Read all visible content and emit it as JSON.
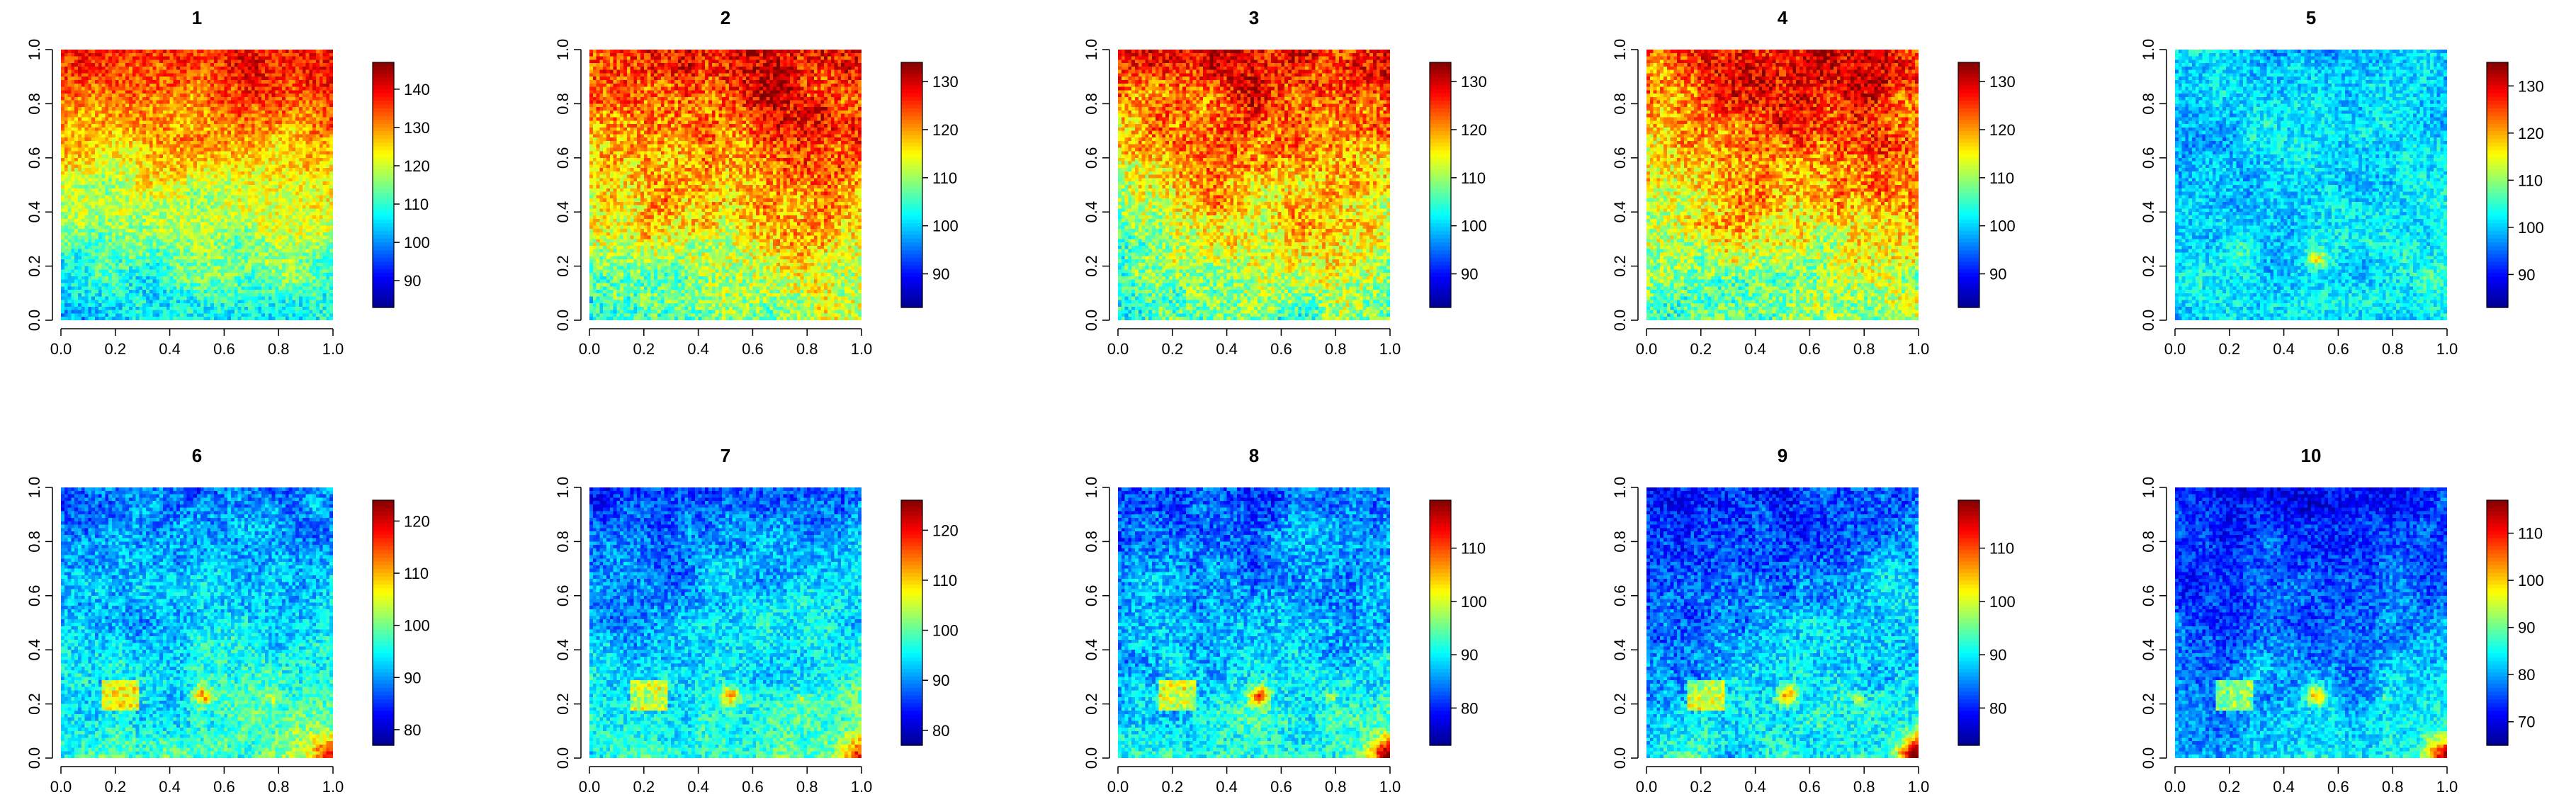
{
  "chart_data": {
    "type": "heatmap",
    "layout": {
      "rows": 2,
      "cols": 5
    },
    "colormap": [
      "#00008F",
      "#0000FF",
      "#0080FF",
      "#00FFFF",
      "#80FF80",
      "#FFFF00",
      "#FF8000",
      "#FF0000",
      "#800000"
    ],
    "panels": [
      {
        "title": "1",
        "xlim": [
          0,
          1
        ],
        "ylim": [
          0,
          1
        ],
        "xticks": [
          "0.0",
          "0.2",
          "0.4",
          "0.6",
          "0.8",
          "1.0"
        ],
        "yticks": [
          "0.0",
          "0.2",
          "0.4",
          "0.6",
          "0.8",
          "1.0"
        ],
        "zlim": [
          83,
          147
        ],
        "legend_ticks": [
          90,
          100,
          110,
          120,
          130,
          140
        ],
        "field": {
          "base": 104,
          "gradient_y": 32,
          "gradient_x": 4,
          "ridge_x": 0,
          "noise": 7,
          "hotspots": [],
          "corner": 0
        }
      },
      {
        "title": "2",
        "xlim": [
          0,
          1
        ],
        "ylim": [
          0,
          1
        ],
        "xticks": [
          "0.0",
          "0.2",
          "0.4",
          "0.6",
          "0.8",
          "1.0"
        ],
        "yticks": [
          "0.0",
          "0.2",
          "0.4",
          "0.6",
          "0.8",
          "1.0"
        ],
        "zlim": [
          83,
          134
        ],
        "legend_ticks": [
          90,
          100,
          110,
          120,
          130
        ],
        "field": {
          "base": 106,
          "gradient_y": 18,
          "gradient_x": 4,
          "ridge_x": 5,
          "noise": 7,
          "hotspots": [],
          "corner": 0
        }
      },
      {
        "title": "3",
        "xlim": [
          0,
          1
        ],
        "ylim": [
          0,
          1
        ],
        "xticks": [
          "0.0",
          "0.2",
          "0.4",
          "0.6",
          "0.8",
          "1.0"
        ],
        "yticks": [
          "0.0",
          "0.2",
          "0.4",
          "0.6",
          "0.8",
          "1.0"
        ],
        "zlim": [
          83,
          134
        ],
        "legend_ticks": [
          90,
          100,
          110,
          120,
          130
        ],
        "field": {
          "base": 105,
          "gradient_y": 18,
          "gradient_x": 4,
          "ridge_x": 5,
          "noise": 7,
          "hotspots": [],
          "corner": 0
        }
      },
      {
        "title": "4",
        "xlim": [
          0,
          1
        ],
        "ylim": [
          0,
          1
        ],
        "xticks": [
          "0.0",
          "0.2",
          "0.4",
          "0.6",
          "0.8",
          "1.0"
        ],
        "yticks": [
          "0.0",
          "0.2",
          "0.4",
          "0.6",
          "0.8",
          "1.0"
        ],
        "zlim": [
          83,
          134
        ],
        "legend_ticks": [
          90,
          100,
          110,
          120,
          130
        ],
        "field": {
          "base": 105,
          "gradient_y": 18,
          "gradient_x": 4,
          "ridge_x": 5,
          "noise": 7,
          "hotspots": [],
          "corner": 0
        }
      },
      {
        "title": "5",
        "xlim": [
          0,
          1
        ],
        "ylim": [
          0,
          1
        ],
        "xticks": [
          "0.0",
          "0.2",
          "0.4",
          "0.6",
          "0.8",
          "1.0"
        ],
        "yticks": [
          "0.0",
          "0.2",
          "0.4",
          "0.6",
          "0.8",
          "1.0"
        ],
        "zlim": [
          83,
          135
        ],
        "legend_ticks": [
          90,
          100,
          110,
          120,
          130
        ],
        "field": {
          "base": 101,
          "gradient_y": -2,
          "gradient_x": 2,
          "ridge_x": 0,
          "noise": 5,
          "hotspots": [
            {
              "x": 0.52,
              "y": 0.23,
              "r": 0.03,
              "amp": 14
            },
            {
              "x": 0.25,
              "y": 0.25,
              "r": 0.07,
              "amp": 6
            }
          ],
          "corner": 0
        }
      },
      {
        "title": "6",
        "xlim": [
          0,
          1
        ],
        "ylim": [
          0,
          1
        ],
        "xticks": [
          "0.0",
          "0.2",
          "0.4",
          "0.6",
          "0.8",
          "1.0"
        ],
        "yticks": [
          "0.0",
          "0.2",
          "0.4",
          "0.6",
          "0.8",
          "1.0"
        ],
        "zlim": [
          77,
          124
        ],
        "legend_ticks": [
          80,
          90,
          100,
          110,
          120
        ],
        "field": {
          "base": 96,
          "gradient_y": -9,
          "gradient_x": 3,
          "ridge_x": 0,
          "noise": 5,
          "hotspots": [
            {
              "x": 0.22,
              "y": 0.23,
              "r": 0.07,
              "amp": 13,
              "square": true
            },
            {
              "x": 0.52,
              "y": 0.23,
              "r": 0.035,
              "amp": 16
            },
            {
              "x": 0.78,
              "y": 0.22,
              "r": 0.02,
              "amp": 8
            }
          ],
          "corner": 22
        }
      },
      {
        "title": "7",
        "xlim": [
          0,
          1
        ],
        "ylim": [
          0,
          1
        ],
        "xticks": [
          "0.0",
          "0.2",
          "0.4",
          "0.6",
          "0.8",
          "1.0"
        ],
        "yticks": [
          "0.0",
          "0.2",
          "0.4",
          "0.6",
          "0.8",
          "1.0"
        ],
        "zlim": [
          77,
          126
        ],
        "legend_ticks": [
          80,
          90,
          100,
          110,
          120
        ],
        "field": {
          "base": 96,
          "gradient_y": -9,
          "gradient_x": 3,
          "ridge_x": 0,
          "noise": 5,
          "hotspots": [
            {
              "x": 0.22,
              "y": 0.23,
              "r": 0.07,
              "amp": 13,
              "square": true
            },
            {
              "x": 0.52,
              "y": 0.23,
              "r": 0.035,
              "amp": 16
            },
            {
              "x": 0.78,
              "y": 0.22,
              "r": 0.02,
              "amp": 8
            }
          ],
          "corner": 22
        }
      },
      {
        "title": "8",
        "xlim": [
          0,
          1
        ],
        "ylim": [
          0,
          1
        ],
        "xticks": [
          "0.0",
          "0.2",
          "0.4",
          "0.6",
          "0.8",
          "1.0"
        ],
        "yticks": [
          "0.0",
          "0.2",
          "0.4",
          "0.6",
          "0.8",
          "1.0"
        ],
        "zlim": [
          73,
          119
        ],
        "legend_ticks": [
          80,
          90,
          100,
          110
        ],
        "field": {
          "base": 90,
          "gradient_y": -9,
          "gradient_x": 3,
          "ridge_x": 0,
          "noise": 5,
          "hotspots": [
            {
              "x": 0.22,
              "y": 0.23,
              "r": 0.07,
              "amp": 13,
              "square": true
            },
            {
              "x": 0.52,
              "y": 0.23,
              "r": 0.035,
              "amp": 18
            },
            {
              "x": 0.78,
              "y": 0.22,
              "r": 0.02,
              "amp": 8
            }
          ],
          "corner": 26
        }
      },
      {
        "title": "9",
        "xlim": [
          0,
          1
        ],
        "ylim": [
          0,
          1
        ],
        "xticks": [
          "0.0",
          "0.2",
          "0.4",
          "0.6",
          "0.8",
          "1.0"
        ],
        "yticks": [
          "0.0",
          "0.2",
          "0.4",
          "0.6",
          "0.8",
          "1.0"
        ],
        "zlim": [
          73,
          119
        ],
        "legend_ticks": [
          80,
          90,
          100,
          110
        ],
        "field": {
          "base": 89,
          "gradient_y": -9,
          "gradient_x": 3,
          "ridge_x": 0,
          "noise": 5,
          "hotspots": [
            {
              "x": 0.22,
              "y": 0.23,
              "r": 0.07,
              "amp": 13,
              "square": true
            },
            {
              "x": 0.52,
              "y": 0.23,
              "r": 0.035,
              "amp": 18
            },
            {
              "x": 0.78,
              "y": 0.22,
              "r": 0.02,
              "amp": 8
            }
          ],
          "corner": 26
        }
      },
      {
        "title": "10",
        "xlim": [
          0,
          1
        ],
        "ylim": [
          0,
          1
        ],
        "xticks": [
          "0.0",
          "0.2",
          "0.4",
          "0.6",
          "0.8",
          "1.0"
        ],
        "yticks": [
          "0.0",
          "0.2",
          "0.4",
          "0.6",
          "0.8",
          "1.0"
        ],
        "zlim": [
          65,
          117
        ],
        "legend_ticks": [
          70,
          80,
          90,
          100,
          110
        ],
        "field": {
          "base": 81,
          "gradient_y": -10,
          "gradient_x": 3,
          "ridge_x": 0,
          "noise": 5,
          "hotspots": [
            {
              "x": 0.22,
              "y": 0.23,
              "r": 0.07,
              "amp": 14,
              "square": true
            },
            {
              "x": 0.52,
              "y": 0.23,
              "r": 0.035,
              "amp": 18
            },
            {
              "x": 0.78,
              "y": 0.22,
              "r": 0.02,
              "amp": 8
            }
          ],
          "corner": 30
        }
      }
    ]
  }
}
